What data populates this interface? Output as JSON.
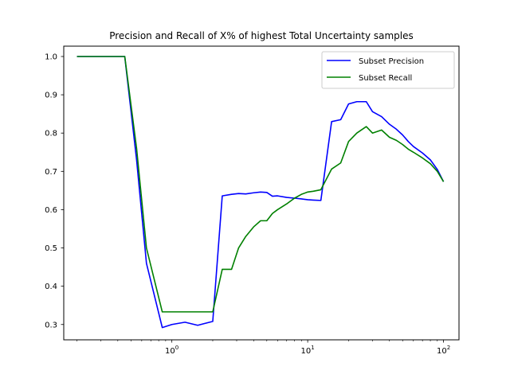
{
  "chart_data": {
    "type": "line",
    "title": "Precision and Recall of X% of highest Total Uncertainty samples",
    "xlabel": "",
    "ylabel": "",
    "xscale": "log",
    "xlim": [
      0.16,
      130
    ],
    "ylim": [
      0.26,
      1.027
    ],
    "x_ticks": [
      {
        "value": 1,
        "base": "10",
        "exp": "0"
      },
      {
        "value": 10,
        "base": "10",
        "exp": "1"
      },
      {
        "value": 100,
        "base": "10",
        "exp": "2"
      }
    ],
    "y_ticks": [
      {
        "value": 0.3,
        "label": "0.3"
      },
      {
        "value": 0.4,
        "label": "0.4"
      },
      {
        "value": 0.5,
        "label": "0.5"
      },
      {
        "value": 0.6,
        "label": "0.6"
      },
      {
        "value": 0.7,
        "label": "0.7"
      },
      {
        "value": 0.8,
        "label": "0.8"
      },
      {
        "value": 0.9,
        "label": "0.9"
      },
      {
        "value": 1.0,
        "label": "1.0"
      }
    ],
    "grid": false,
    "legend": "top-right",
    "series": [
      {
        "name": "Subset Precision",
        "color": "#0000ff",
        "x": [
          0.2,
          0.25,
          0.3,
          0.35,
          0.4,
          0.45,
          0.55,
          0.65,
          0.85,
          1.0,
          1.25,
          1.55,
          2.0,
          2.35,
          2.75,
          3.1,
          3.5,
          4.0,
          4.5,
          5.0,
          5.5,
          6.0,
          7.0,
          8.0,
          9.0,
          10.0,
          11.0,
          12.5,
          15.0,
          17.5,
          20.0,
          23.0,
          27.0,
          30.0,
          35.0,
          40.0,
          45.0,
          50.0,
          55.0,
          60.0,
          70.0,
          80.0,
          90.0,
          100.0
        ],
        "values": [
          1.0,
          1.0,
          1.0,
          1.0,
          1.0,
          1.0,
          0.73,
          0.46,
          0.292,
          0.3,
          0.306,
          0.298,
          0.308,
          0.636,
          0.64,
          0.642,
          0.641,
          0.644,
          0.646,
          0.645,
          0.635,
          0.636,
          0.632,
          0.63,
          0.628,
          0.626,
          0.625,
          0.624,
          0.83,
          0.835,
          0.876,
          0.882,
          0.882,
          0.856,
          0.843,
          0.823,
          0.81,
          0.795,
          0.778,
          0.765,
          0.748,
          0.73,
          0.705,
          0.673
        ]
      },
      {
        "name": "Subset Recall",
        "color": "#008000",
        "x": [
          0.2,
          0.25,
          0.3,
          0.35,
          0.4,
          0.45,
          0.55,
          0.65,
          0.85,
          1.0,
          1.25,
          1.55,
          2.0,
          2.35,
          2.75,
          3.1,
          3.5,
          4.0,
          4.5,
          5.0,
          5.5,
          6.0,
          7.0,
          8.0,
          9.0,
          10.0,
          11.0,
          12.5,
          15.0,
          17.5,
          20.0,
          23.0,
          27.0,
          30.0,
          35.0,
          40.0,
          45.0,
          50.0,
          55.0,
          60.0,
          70.0,
          80.0,
          90.0,
          100.0
        ],
        "values": [
          1.0,
          1.0,
          1.0,
          1.0,
          1.0,
          1.0,
          0.76,
          0.5,
          0.333,
          0.333,
          0.333,
          0.333,
          0.333,
          0.444,
          0.444,
          0.5,
          0.53,
          0.555,
          0.571,
          0.571,
          0.59,
          0.6,
          0.615,
          0.63,
          0.64,
          0.646,
          0.648,
          0.652,
          0.706,
          0.722,
          0.778,
          0.8,
          0.817,
          0.8,
          0.808,
          0.789,
          0.781,
          0.77,
          0.758,
          0.75,
          0.735,
          0.72,
          0.7,
          0.673
        ]
      }
    ]
  }
}
